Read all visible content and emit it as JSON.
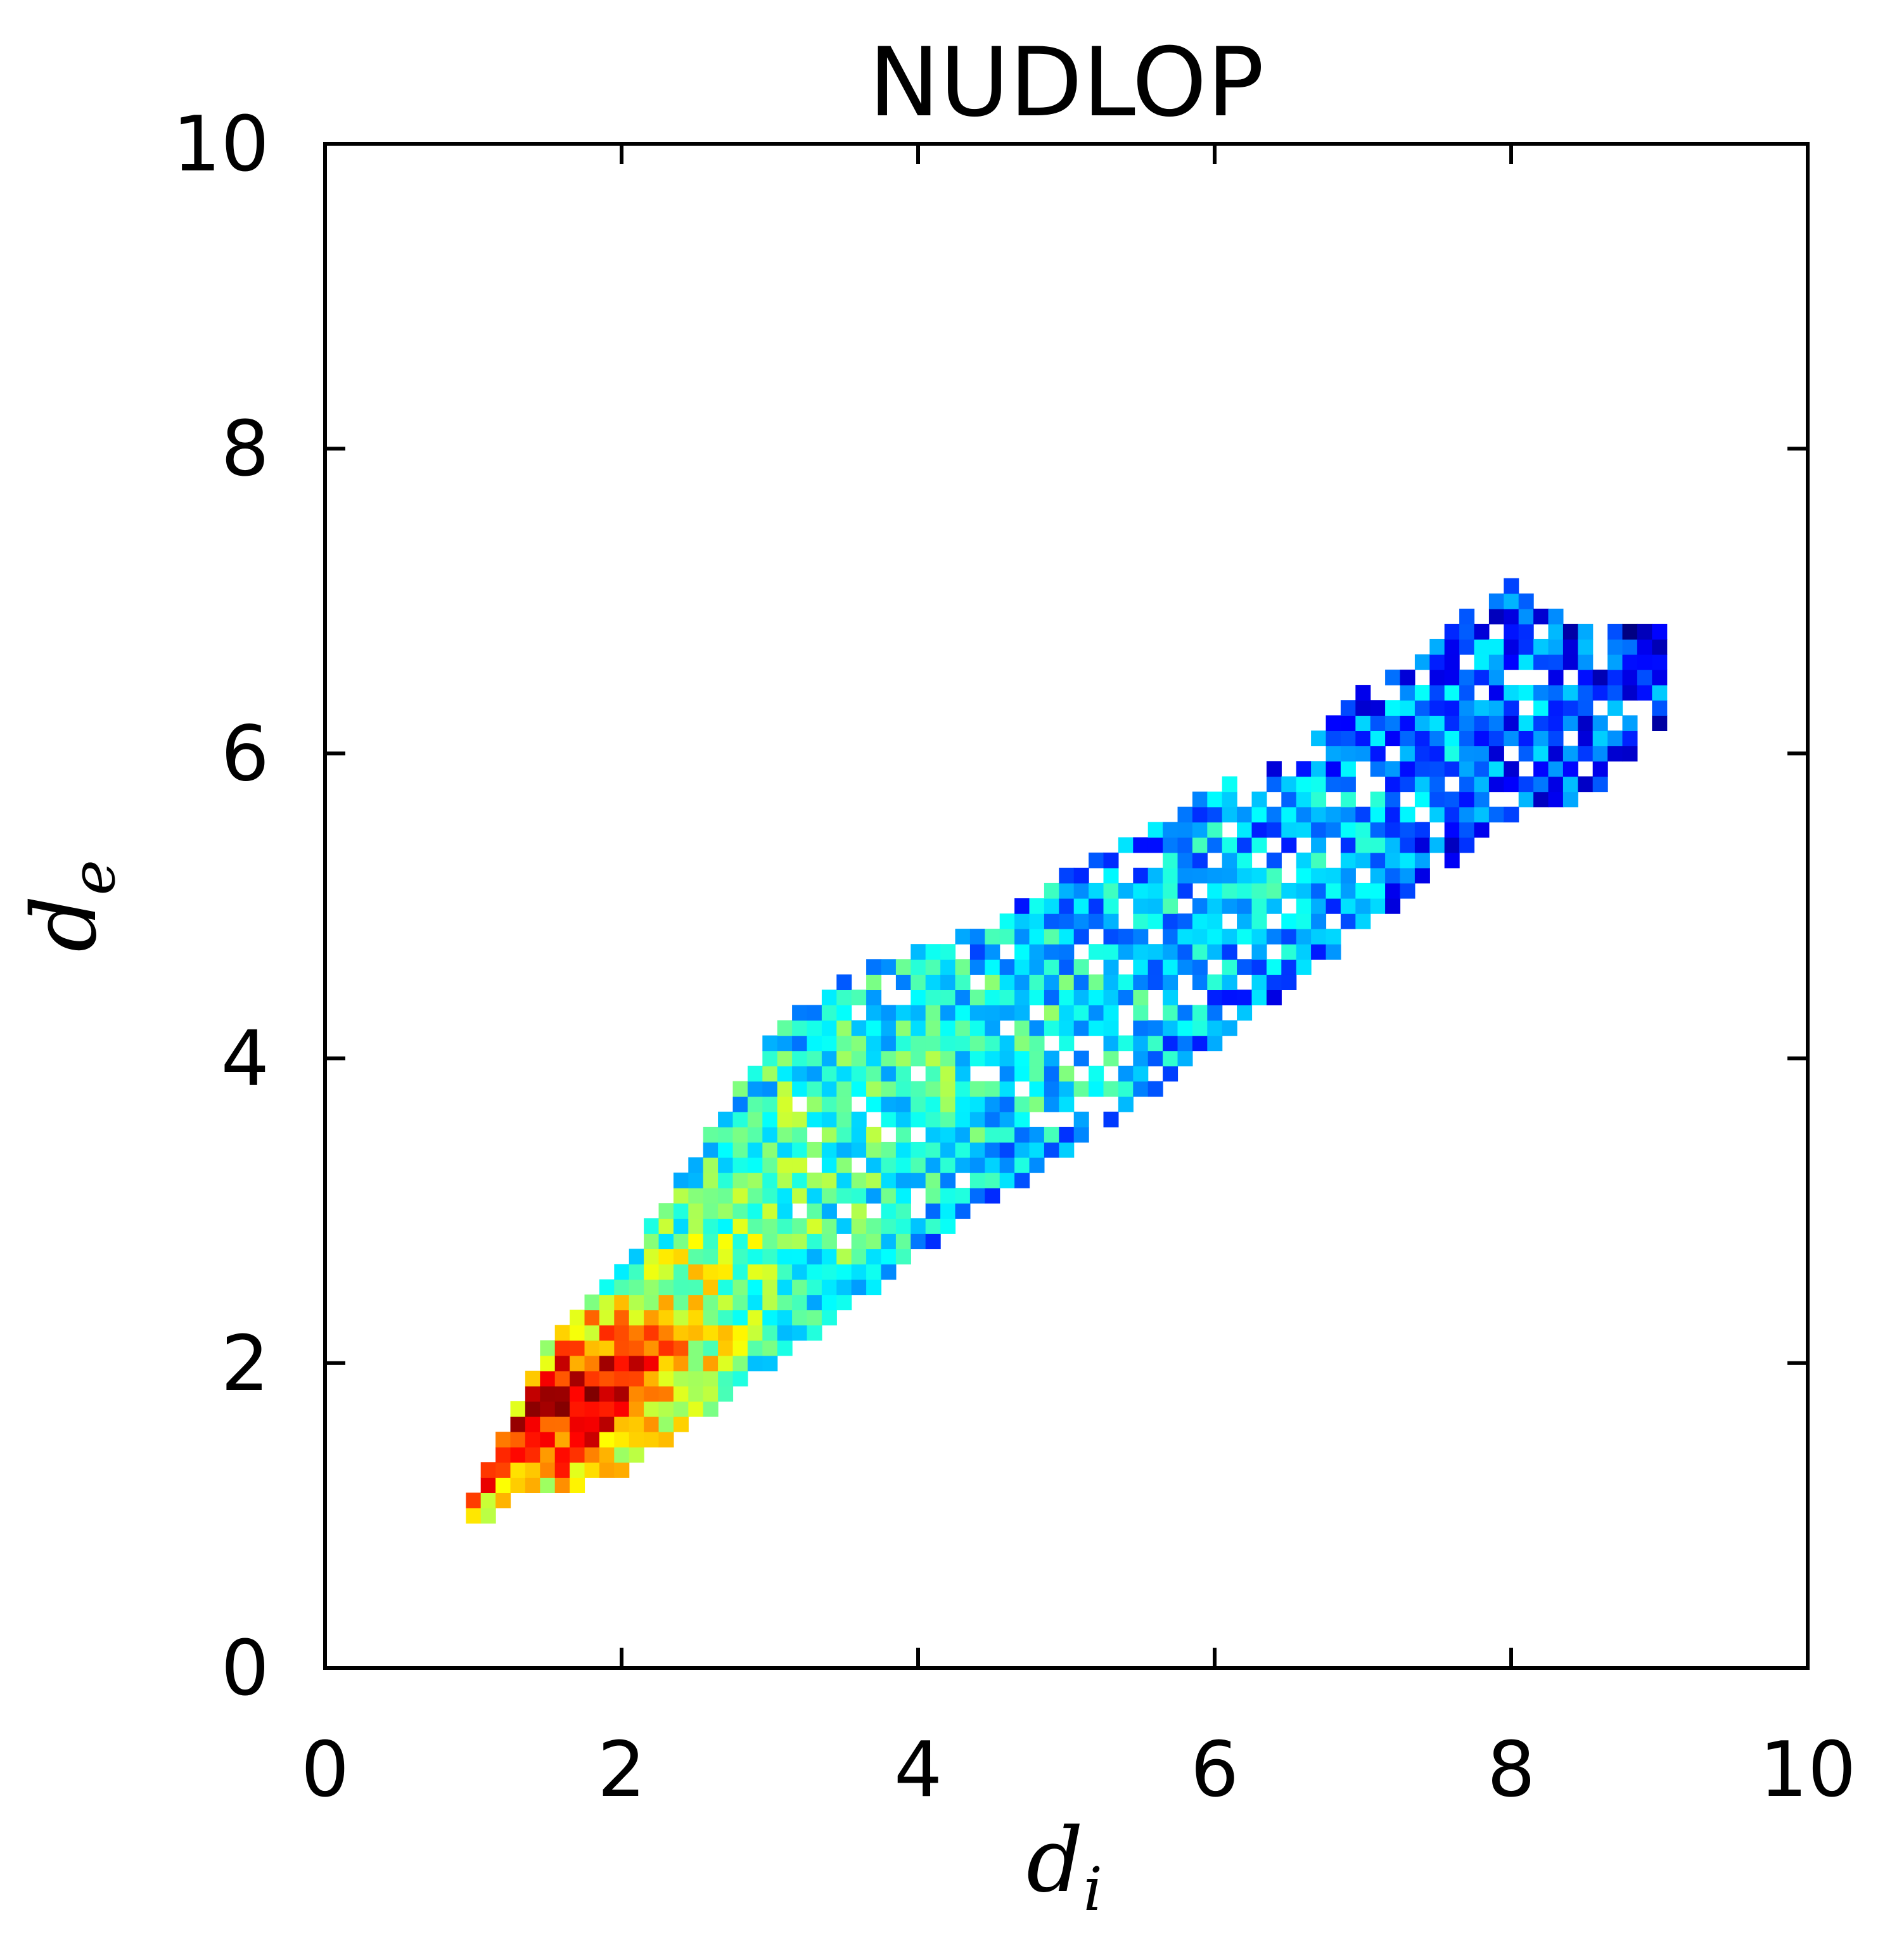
{
  "chart_data": {
    "type": "heatmap",
    "title": "NUDLOP",
    "xlabel": "d",
    "xlabel_subscript": "i",
    "ylabel": "d",
    "ylabel_subscript": "e",
    "xlim": [
      0,
      10
    ],
    "ylim": [
      0,
      10
    ],
    "xticks": [
      "0",
      "2",
      "4",
      "6",
      "8",
      "10"
    ],
    "yticks": [
      "0",
      "2",
      "4",
      "6",
      "8",
      "10"
    ],
    "grid": false,
    "legend": "none",
    "colormap": "jet",
    "bin_size": 0.1,
    "density_description": "2D histogram of (d_i, d_e) pairs concentrated along a band from about (1,1) to (9,6.8); highest density (red) near d_i 1.2-1.9, d_e 1.2-2.2, decreasing to green around d_i 2-4, and blue/dark blue toward the upper-right edge.",
    "band": [
      {
        "x": 1.0,
        "lower": 0.95,
        "upper": 1.15
      },
      {
        "x": 1.3,
        "lower": 1.15,
        "upper": 1.75
      },
      {
        "x": 1.6,
        "lower": 1.15,
        "upper": 2.25
      },
      {
        "x": 2.0,
        "lower": 1.3,
        "upper": 2.6
      },
      {
        "x": 2.5,
        "lower": 1.65,
        "upper": 3.35
      },
      {
        "x": 3.0,
        "lower": 2.0,
        "upper": 4.1
      },
      {
        "x": 3.5,
        "lower": 2.35,
        "upper": 4.55
      },
      {
        "x": 4.0,
        "lower": 2.75,
        "upper": 4.7
      },
      {
        "x": 4.5,
        "lower": 3.1,
        "upper": 4.85
      },
      {
        "x": 5.0,
        "lower": 3.4,
        "upper": 5.2
      },
      {
        "x": 5.5,
        "lower": 3.75,
        "upper": 5.45
      },
      {
        "x": 6.0,
        "lower": 4.1,
        "upper": 5.75
      },
      {
        "x": 6.5,
        "lower": 4.5,
        "upper": 5.95
      },
      {
        "x": 7.0,
        "lower": 4.85,
        "upper": 6.4
      },
      {
        "x": 7.5,
        "lower": 5.25,
        "upper": 6.7
      },
      {
        "x": 8.0,
        "lower": 5.6,
        "upper": 7.15
      },
      {
        "x": 8.5,
        "lower": 5.75,
        "upper": 6.8
      },
      {
        "x": 9.0,
        "lower": 6.1,
        "upper": 6.85
      }
    ],
    "peak": {
      "x": 1.55,
      "y": 1.75
    }
  }
}
